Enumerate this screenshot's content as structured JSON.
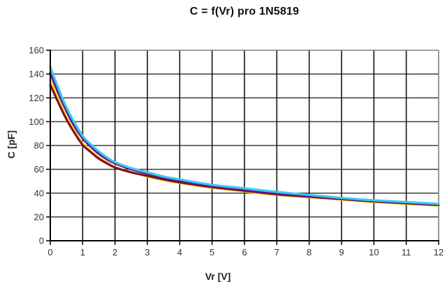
{
  "chart_data": {
    "type": "line",
    "title": "C = f(Vr) pro 1N5819",
    "xlabel": "Vr [V]",
    "ylabel": "C [pF]",
    "xlim": [
      0,
      12
    ],
    "ylim": [
      0,
      160
    ],
    "xticks": [
      0,
      1,
      2,
      3,
      4,
      5,
      6,
      7,
      8,
      9,
      10,
      11,
      12
    ],
    "yticks": [
      0,
      20,
      40,
      60,
      80,
      100,
      120,
      140,
      160
    ],
    "grid": "on",
    "legend": "none",
    "x": [
      0,
      0.25,
      0.5,
      0.75,
      1,
      1.25,
      1.5,
      1.75,
      2,
      2.5,
      3,
      3.5,
      4,
      5,
      6,
      7,
      8,
      9,
      10,
      11,
      12
    ],
    "series": [
      {
        "name": "series-yellow",
        "color": "#FFDF1A",
        "values": [
          135,
          119,
          104,
          92,
          82,
          75.5,
          70,
          66,
          62,
          57.5,
          54,
          51,
          48.5,
          44.5,
          41.5,
          38.5,
          36.5,
          34.5,
          32.5,
          31,
          29.5
        ]
      },
      {
        "name": "series-maroon",
        "color": "#7E1512",
        "values": [
          131,
          116,
          102,
          90.5,
          80.5,
          74.5,
          69,
          65,
          61.5,
          57.5,
          54.5,
          51.5,
          49,
          45,
          42,
          39,
          37,
          35,
          33,
          31.5,
          30
        ]
      },
      {
        "name": "series-purple",
        "color": "#66109E",
        "values": [
          141,
          124,
          109,
          96,
          86,
          79,
          73,
          68.5,
          65,
          60,
          56.5,
          53,
          50.5,
          46,
          43,
          40,
          37.5,
          35.5,
          33.5,
          32,
          30.5
        ]
      },
      {
        "name": "series-cyan",
        "color": "#38CCF0",
        "values": [
          146,
          128,
          112,
          99,
          88,
          81,
          75,
          70,
          66,
          61,
          57.5,
          54,
          51.5,
          47,
          44,
          41,
          38.5,
          36,
          34,
          32.5,
          31
        ]
      }
    ],
    "style_colors": {
      "vertical_grid": "#161616",
      "horizontal_grid": "#3d3d3d",
      "outer_border": "#808080",
      "axis": "#000000",
      "tick_text": "#333333"
    }
  }
}
